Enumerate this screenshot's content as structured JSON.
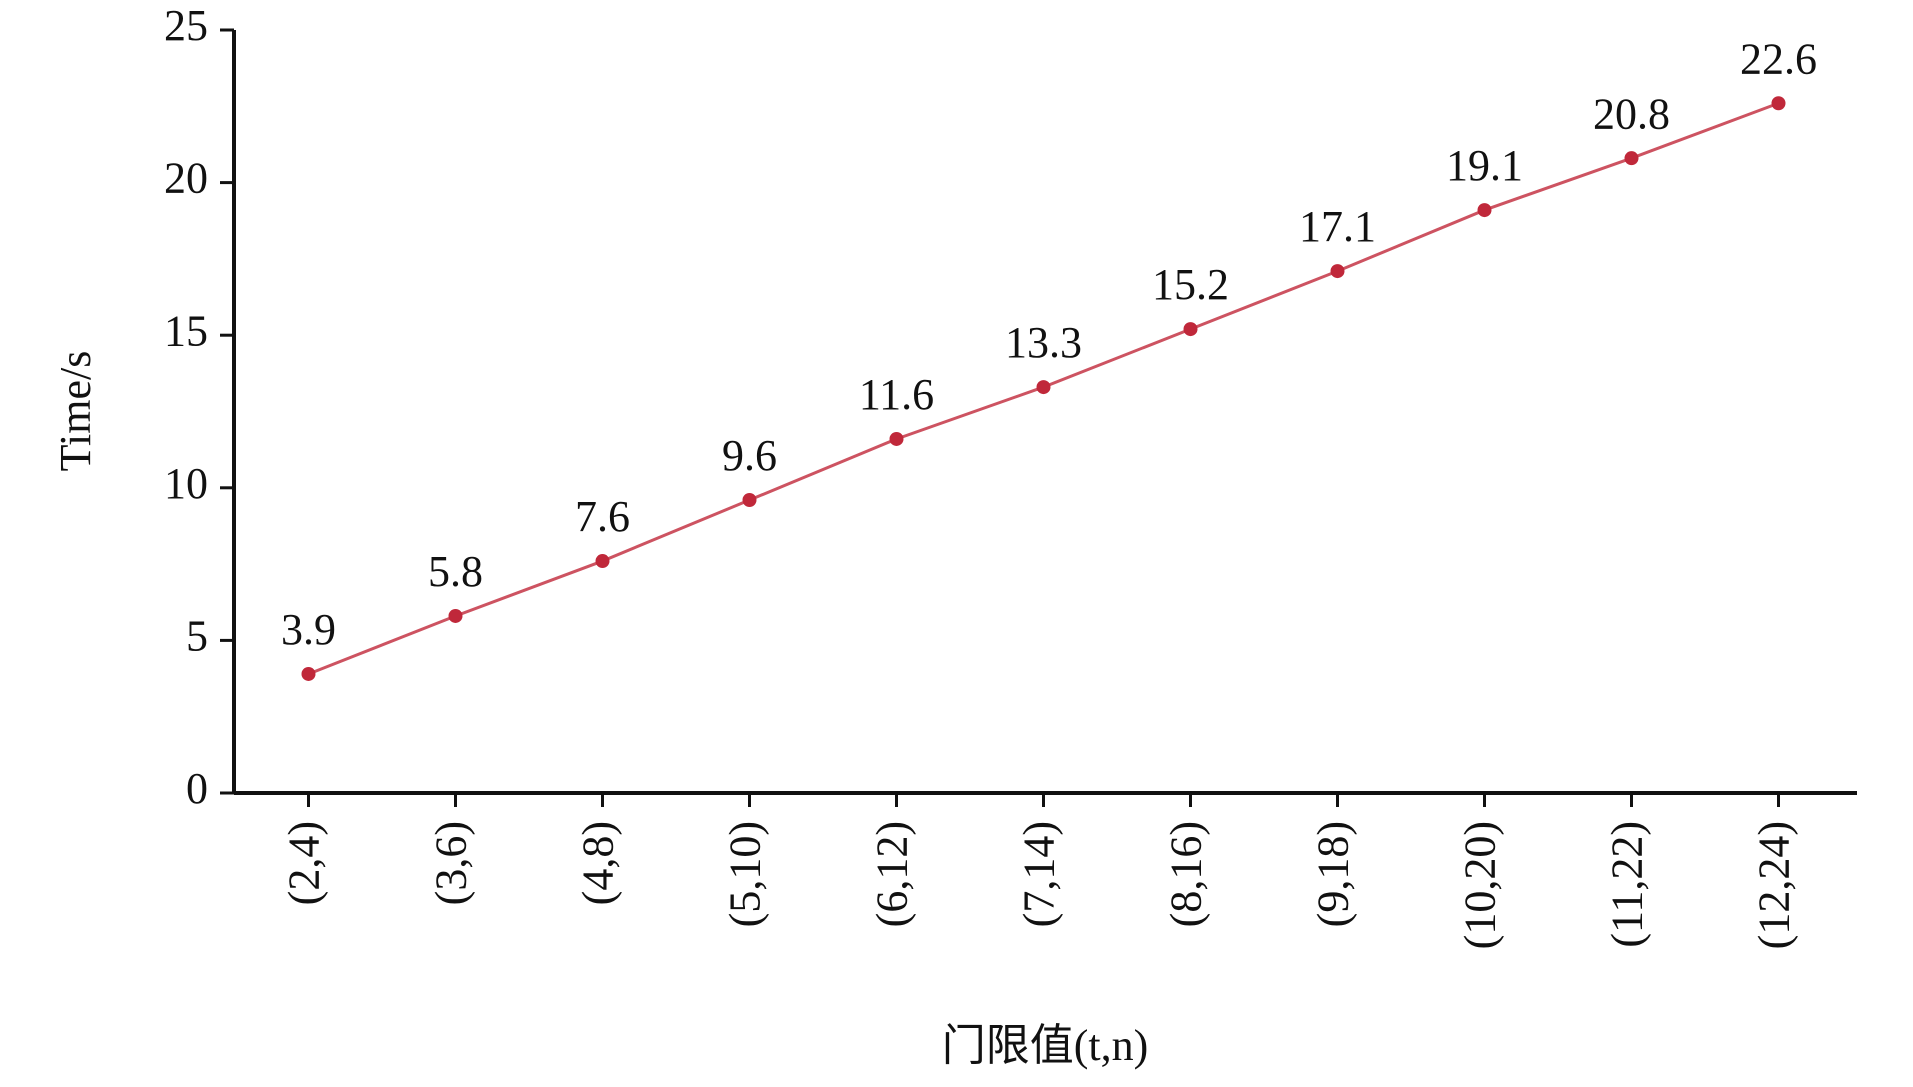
{
  "chart_data": {
    "type": "line",
    "x_label": "门限值(t,n)",
    "y_label": "Time/s",
    "categories": [
      "(2,4)",
      "(3,6)",
      "(4,8)",
      "(5,10)",
      "(6,12)",
      "(7,14)",
      "(8,16)",
      "(9,18)",
      "(10,20)",
      "(11,22)",
      "(12,24)"
    ],
    "series": [
      {
        "name": "Time",
        "color": "#c0283a",
        "values": [
          3.9,
          5.8,
          7.6,
          9.6,
          11.6,
          13.3,
          15.2,
          17.1,
          19.1,
          20.8,
          22.6
        ]
      }
    ],
    "ylim": [
      0,
      25
    ],
    "yticks": [
      0,
      5,
      10,
      15,
      20,
      25
    ],
    "grid": false,
    "data_labels": true
  }
}
